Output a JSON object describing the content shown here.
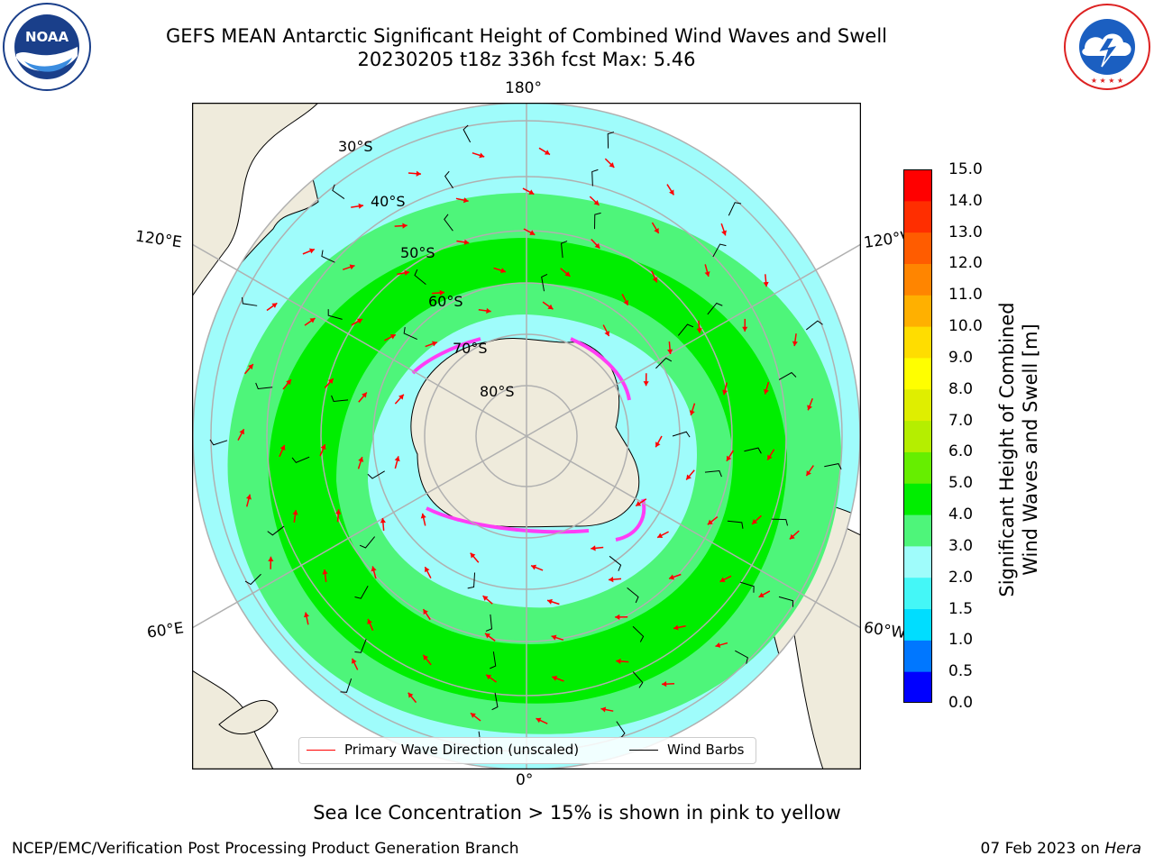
{
  "header": {
    "title_line1": "GEFS MEAN Antarctic Significant Height of Combined Wind Waves and Swell",
    "title_line2": "20230205 t18z 336h fcst   Max: 5.46"
  },
  "logos": {
    "noaa": {
      "text": "NOAA",
      "ring_text": "NATIONAL OCEANIC AND ATMOSPHERIC ADMINISTRATION",
      "bottom_text": "U.S. DEPARTMENT OF COMMERCE"
    },
    "nws": {
      "ring_text": "NATIONAL WEATHER SERVICE"
    }
  },
  "map": {
    "projection": "south-polar-stereographic",
    "lon_labels": {
      "top": "180°",
      "bottom": "0°",
      "left_upper": "120°E",
      "left_lower": "60°E",
      "right_upper": "120°W",
      "right_lower": "60°W"
    },
    "lat_labels": [
      "30°S",
      "40°S",
      "50°S",
      "60°S",
      "70°S",
      "80°S"
    ],
    "ocean_color": "#9ffcfb",
    "land_color": "#efebdc"
  },
  "colorbar": {
    "label_line1": "Significant Height of Combined",
    "label_line2": "Wind Waves and Swell [m]",
    "ticks": [
      "0.0",
      "0.5",
      "1.0",
      "1.5",
      "2.0",
      "3.0",
      "4.0",
      "5.0",
      "6.0",
      "7.0",
      "8.0",
      "9.0",
      "10.0",
      "11.0",
      "12.0",
      "13.0",
      "14.0",
      "15.0"
    ],
    "colors": [
      "#0000ff",
      "#0077ff",
      "#00ddff",
      "#44f7f7",
      "#9ffcfb",
      "#4ef57a",
      "#00ee00",
      "#66ee00",
      "#b5ee00",
      "#dfee00",
      "#ffff00",
      "#ffdd00",
      "#ffb000",
      "#ff8500",
      "#ff5c00",
      "#ff2e00",
      "#ff0000"
    ]
  },
  "legend": {
    "primary_wave": "Primary Wave Direction (unscaled)",
    "wind_barbs": "Wind Barbs"
  },
  "subtitle": "Sea Ice Concentration > 15% is shown in pink to yellow",
  "footer": {
    "left": "NCEP/EMC/Verification Post Processing Product Generation Branch",
    "right_prefix": "07 Feb 2023 on ",
    "right_host": "Hera"
  }
}
